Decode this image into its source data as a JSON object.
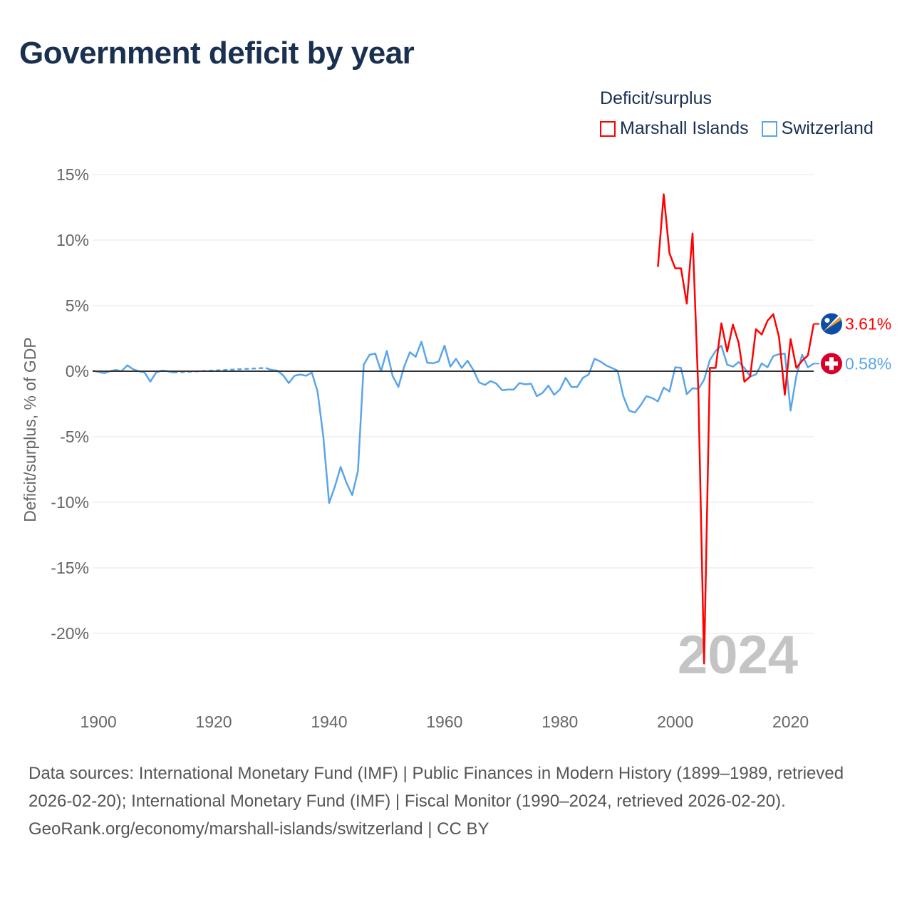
{
  "title": "Government deficit by year",
  "legend": {
    "title": "Deficit/surplus",
    "items": [
      {
        "label": "Marshall Islands",
        "color": "#ff0000"
      },
      {
        "label": "Switzerland",
        "color": "#5aa5ea"
      }
    ]
  },
  "chart_data": {
    "type": "line",
    "title": "Government deficit by year",
    "xlabel": "",
    "ylabel": "Deficit/surplus, % of GDP",
    "xlim": [
      1899,
      2024
    ],
    "ylim": [
      -25,
      15
    ],
    "x_ticks": [
      1900,
      1920,
      1940,
      1960,
      1980,
      2000,
      2020
    ],
    "y_ticks": [
      15,
      10,
      5,
      0,
      -5,
      -10,
      -15,
      -20
    ],
    "y_tick_labels": [
      "15%",
      "10%",
      "5%",
      "0%",
      "-5%",
      "-10%",
      "-15%",
      "-20%"
    ],
    "grid": true,
    "legend_position": "top-right",
    "year_watermark": "2024",
    "series": [
      {
        "name": "Marshall Islands",
        "color": "#ff0000",
        "end_label": "3.61%",
        "flag": "marshall-islands",
        "x": [
          1997,
          1998,
          1999,
          2000,
          2001,
          2002,
          2003,
          2004,
          2005,
          2006,
          2007,
          2008,
          2009,
          2010,
          2011,
          2012,
          2013,
          2014,
          2015,
          2016,
          2017,
          2018,
          2019,
          2020,
          2021,
          2022,
          2023,
          2024
        ],
        "y": [
          7.95,
          13.5,
          9.0,
          7.85,
          7.85,
          5.15,
          10.5,
          -1.5,
          -22.3,
          0.25,
          0.25,
          3.65,
          1.5,
          3.55,
          2.15,
          -0.8,
          -0.4,
          3.2,
          2.8,
          3.85,
          4.35,
          2.6,
          -1.8,
          2.45,
          0.25,
          0.8,
          1.2,
          3.61
        ]
      },
      {
        "name": "Switzerland",
        "color": "#5aa5ea",
        "end_label": "0.58%",
        "flag": "switzerland",
        "x": [
          1899,
          1900,
          1901,
          1902,
          1903,
          1904,
          1905,
          1906,
          1907,
          1908,
          1909,
          1910,
          1911,
          1912,
          1913,
          1929,
          1930,
          1931,
          1932,
          1933,
          1934,
          1935,
          1936,
          1937,
          1938,
          1939,
          1940,
          1941,
          1942,
          1943,
          1944,
          1945,
          1946,
          1947,
          1948,
          1949,
          1950,
          1951,
          1952,
          1953,
          1954,
          1955,
          1956,
          1957,
          1958,
          1959,
          1960,
          1961,
          1962,
          1963,
          1964,
          1965,
          1966,
          1967,
          1968,
          1969,
          1970,
          1971,
          1972,
          1973,
          1974,
          1975,
          1976,
          1977,
          1978,
          1979,
          1980,
          1981,
          1982,
          1983,
          1984,
          1985,
          1986,
          1987,
          1988,
          1989,
          1990,
          1991,
          1992,
          1993,
          1994,
          1995,
          1996,
          1997,
          1998,
          1999,
          2000,
          2001,
          2002,
          2003,
          2004,
          2005,
          2006,
          2007,
          2008,
          2009,
          2010,
          2011,
          2012,
          2013,
          2014,
          2015,
          2016,
          2017,
          2018,
          2019,
          2020,
          2021,
          2022,
          2023,
          2024
        ],
        "y": [
          0.05,
          -0.05,
          -0.15,
          0.0,
          0.1,
          0.0,
          0.45,
          0.15,
          0.0,
          -0.1,
          -0.8,
          -0.1,
          0.05,
          0.0,
          -0.1,
          0.25,
          0.1,
          0.05,
          -0.3,
          -0.9,
          -0.35,
          -0.25,
          -0.35,
          -0.1,
          -1.55,
          -5.0,
          -10.05,
          -8.8,
          -7.3,
          -8.5,
          -9.45,
          -7.6,
          0.5,
          1.25,
          1.35,
          0.0,
          1.55,
          -0.35,
          -1.2,
          0.35,
          1.45,
          1.1,
          2.25,
          0.65,
          0.6,
          0.75,
          1.95,
          0.35,
          0.95,
          0.25,
          0.8,
          0.1,
          -0.85,
          -1.05,
          -0.75,
          -0.95,
          -1.45,
          -1.4,
          -1.4,
          -0.9,
          -1.0,
          -0.95,
          -1.9,
          -1.65,
          -1.1,
          -1.8,
          -1.4,
          -0.5,
          -1.2,
          -1.2,
          -0.5,
          -0.25,
          0.95,
          0.75,
          0.45,
          0.25,
          0.05,
          -1.9,
          -3.0,
          -3.15,
          -2.6,
          -1.9,
          -2.05,
          -2.3,
          -1.25,
          -1.55,
          0.3,
          0.25,
          -1.75,
          -1.3,
          -1.35,
          -0.65,
          0.85,
          1.55,
          1.95,
          0.5,
          0.35,
          0.7,
          0.25,
          -0.4,
          -0.25,
          0.6,
          0.3,
          1.15,
          1.3,
          1.35,
          -3.0,
          -0.35,
          1.25,
          0.3,
          0.58
        ]
      }
    ]
  },
  "footer": {
    "sources": "Data sources: International Monetary Fund (IMF) | Public Finances in Modern History (1899–1989, retrieved 2026-02-20); International Monetary Fund (IMF) | Fiscal Monitor (1990–2024, retrieved 2026-02-20).",
    "credit": "GeoRank.org/economy/marshall-islands/switzerland | CC BY"
  }
}
